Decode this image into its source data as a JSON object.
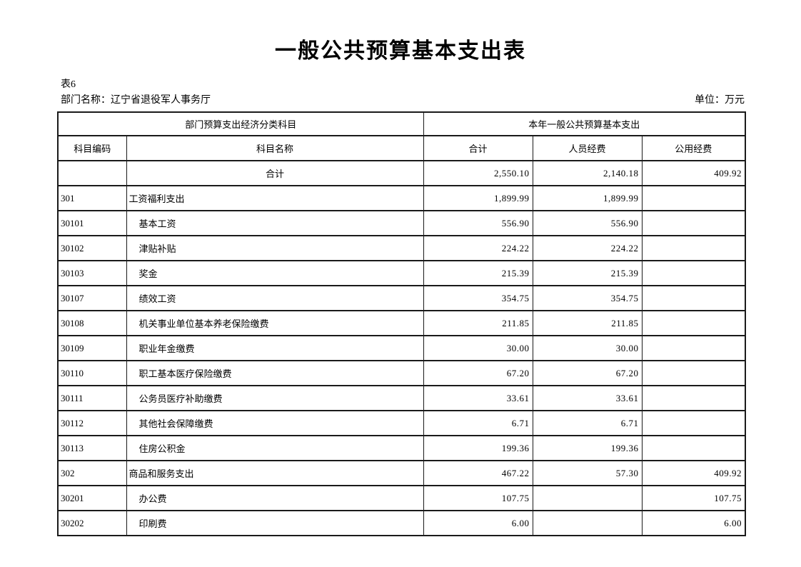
{
  "page": {
    "title": "一般公共预算基本支出表",
    "table_no": "表6",
    "department_label": "部门名称：",
    "department_name": "辽宁省退役军人事务厅",
    "unit_label": "单位：",
    "unit_value": "万元"
  },
  "table": {
    "header": {
      "group_left": "部门预算支出经济分类科目",
      "group_right": "本年一般公共预算基本支出",
      "columns": [
        "科目编码",
        "科目名称",
        "合计",
        "人员经费",
        "公用经费"
      ]
    },
    "rows": [
      {
        "code": "",
        "name": "合计",
        "align": "center",
        "total": "2,550.10",
        "personnel": "2,140.18",
        "public": "409.92"
      },
      {
        "code": "301",
        "name": "工资福利支出",
        "align": "level1",
        "total": "1,899.99",
        "personnel": "1,899.99",
        "public": ""
      },
      {
        "code": "30101",
        "name": "基本工资",
        "align": "level2",
        "total": "556.90",
        "personnel": "556.90",
        "public": ""
      },
      {
        "code": "30102",
        "name": "津贴补贴",
        "align": "level2",
        "total": "224.22",
        "personnel": "224.22",
        "public": ""
      },
      {
        "code": "30103",
        "name": "奖金",
        "align": "level2",
        "total": "215.39",
        "personnel": "215.39",
        "public": ""
      },
      {
        "code": "30107",
        "name": "绩效工资",
        "align": "level2",
        "total": "354.75",
        "personnel": "354.75",
        "public": ""
      },
      {
        "code": "30108",
        "name": "机关事业单位基本养老保险缴费",
        "align": "level2",
        "total": "211.85",
        "personnel": "211.85",
        "public": ""
      },
      {
        "code": "30109",
        "name": "职业年金缴费",
        "align": "level2",
        "total": "30.00",
        "personnel": "30.00",
        "public": ""
      },
      {
        "code": "30110",
        "name": "职工基本医疗保险缴费",
        "align": "level2",
        "total": "67.20",
        "personnel": "67.20",
        "public": ""
      },
      {
        "code": "30111",
        "name": "公务员医疗补助缴费",
        "align": "level2",
        "total": "33.61",
        "personnel": "33.61",
        "public": ""
      },
      {
        "code": "30112",
        "name": "其他社会保障缴费",
        "align": "level2",
        "total": "6.71",
        "personnel": "6.71",
        "public": ""
      },
      {
        "code": "30113",
        "name": "住房公积金",
        "align": "level2",
        "total": "199.36",
        "personnel": "199.36",
        "public": ""
      },
      {
        "code": "302",
        "name": "商品和服务支出",
        "align": "level1",
        "total": "467.22",
        "personnel": "57.30",
        "public": "409.92"
      },
      {
        "code": "30201",
        "name": "办公费",
        "align": "level2",
        "total": "107.75",
        "personnel": "",
        "public": "107.75"
      },
      {
        "code": "30202",
        "name": "印刷费",
        "align": "level2",
        "total": "6.00",
        "personnel": "",
        "public": "6.00"
      }
    ]
  }
}
